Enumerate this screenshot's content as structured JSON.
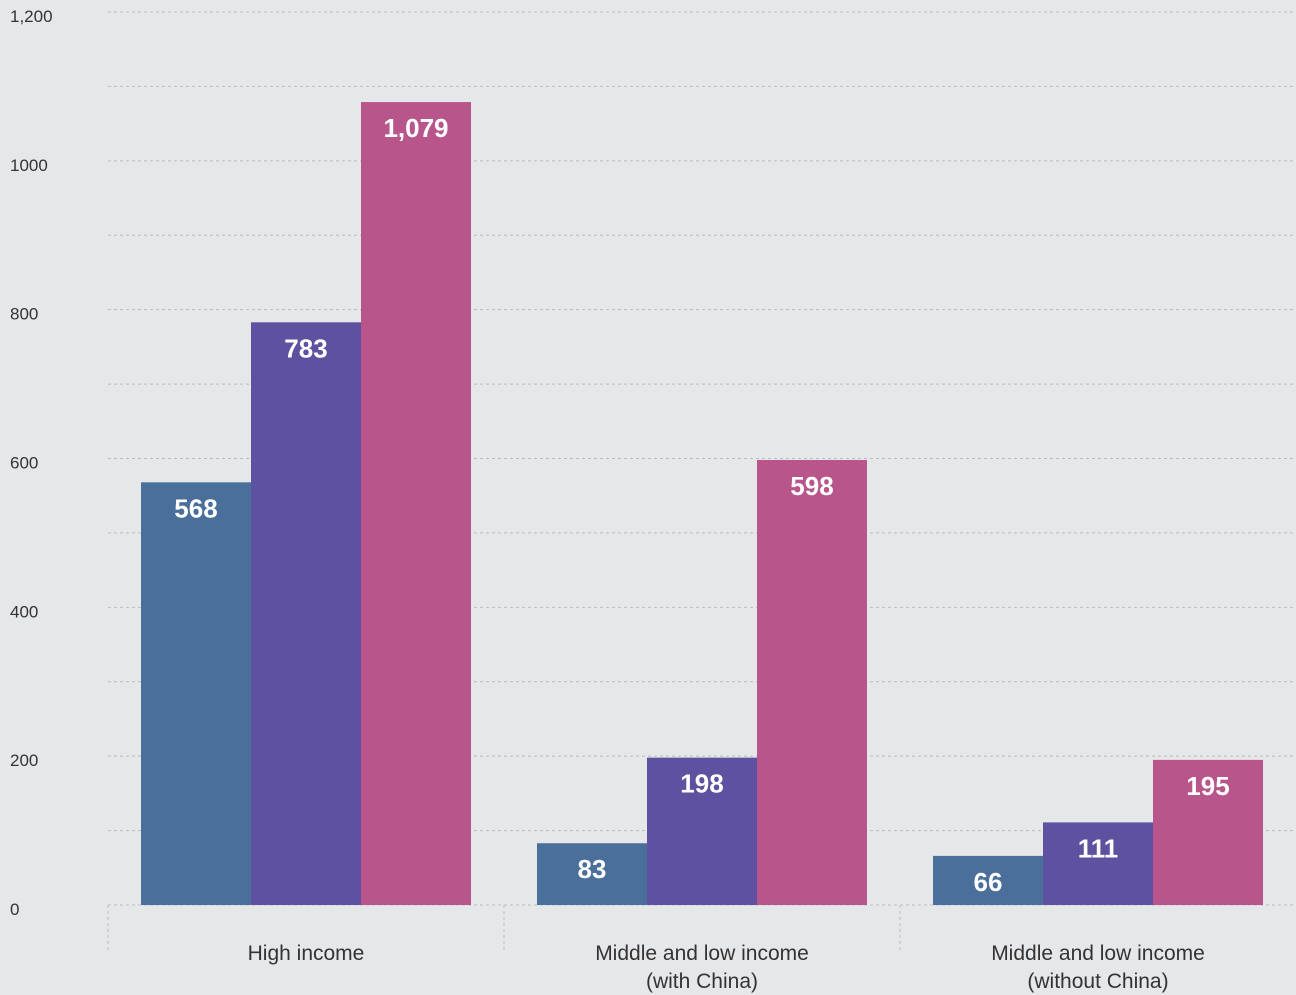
{
  "chart_data": {
    "type": "bar",
    "title": "",
    "xlabel": "",
    "ylabel": "",
    "ylim": [
      0,
      1200
    ],
    "y_tick_values": [
      0,
      200,
      400,
      600,
      800,
      1000,
      1200
    ],
    "y_tick_labels": [
      "0",
      "200",
      "400",
      "600",
      "800",
      "1000",
      "1,200"
    ],
    "grid": true,
    "legend": "none",
    "categories": [
      [
        "High income"
      ],
      [
        "Middle and low income",
        "(with China)"
      ],
      [
        "Middle and low income",
        "(without China)"
      ]
    ],
    "series": [
      {
        "color": "#4a6f9a",
        "values": [
          568,
          83,
          66
        ],
        "labels": [
          "568",
          "83",
          "66"
        ]
      },
      {
        "color": "#5e51a0",
        "values": [
          783,
          198,
          111
        ],
        "labels": [
          "783",
          "198",
          "111"
        ]
      },
      {
        "color": "#b8568c",
        "values": [
          1079,
          598,
          195
        ],
        "labels": [
          "1,079",
          "598",
          "195"
        ]
      }
    ]
  }
}
